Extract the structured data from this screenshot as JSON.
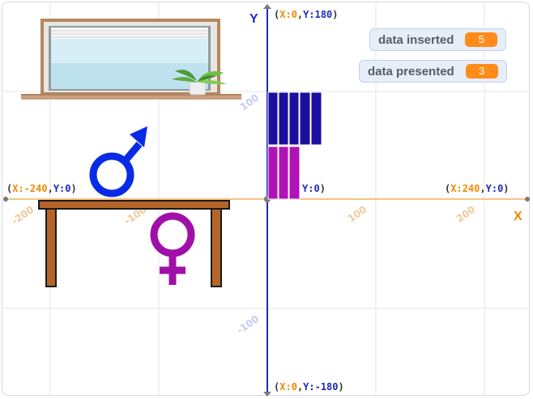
{
  "monitors": [
    {
      "label": "data inserted",
      "value": "5"
    },
    {
      "label": "data presented",
      "value": "3"
    }
  ],
  "axes": {
    "x_label": "X",
    "y_label": "Y",
    "top": {
      "x_key": "X:",
      "x_val": "0",
      "y_key": "Y:",
      "y_val": "180"
    },
    "bottom": {
      "x_key": "X:",
      "x_val": "0",
      "y_key": "Y:",
      "y_val": "-180"
    },
    "left": {
      "x_key": "X:",
      "x_val": "-240",
      "y_key": "Y:",
      "y_val": "0"
    },
    "right": {
      "x_key": "X:",
      "x_val": "240",
      "y_key": "Y:",
      "y_val": "0"
    },
    "center_partial": "Y:0",
    "ticks": {
      "x_neg200": "-200",
      "x_neg100": "-100",
      "x_100": "100",
      "x_200": "200",
      "y_100": "100",
      "y_neg100": "-100"
    }
  },
  "colors": {
    "axis_x": "#f08a00",
    "axis_y": "#1f2bb8",
    "male_bars": "#1a0f9e",
    "female_bars": "#b112b8",
    "male_symbol": "#0a2be6",
    "female_symbol": "#a010a8"
  },
  "icons": {
    "male": "male-symbol-icon",
    "female": "female-symbol-icon",
    "window": "window-sprite",
    "plant": "plant-sprite",
    "table": "table-sprite"
  }
}
